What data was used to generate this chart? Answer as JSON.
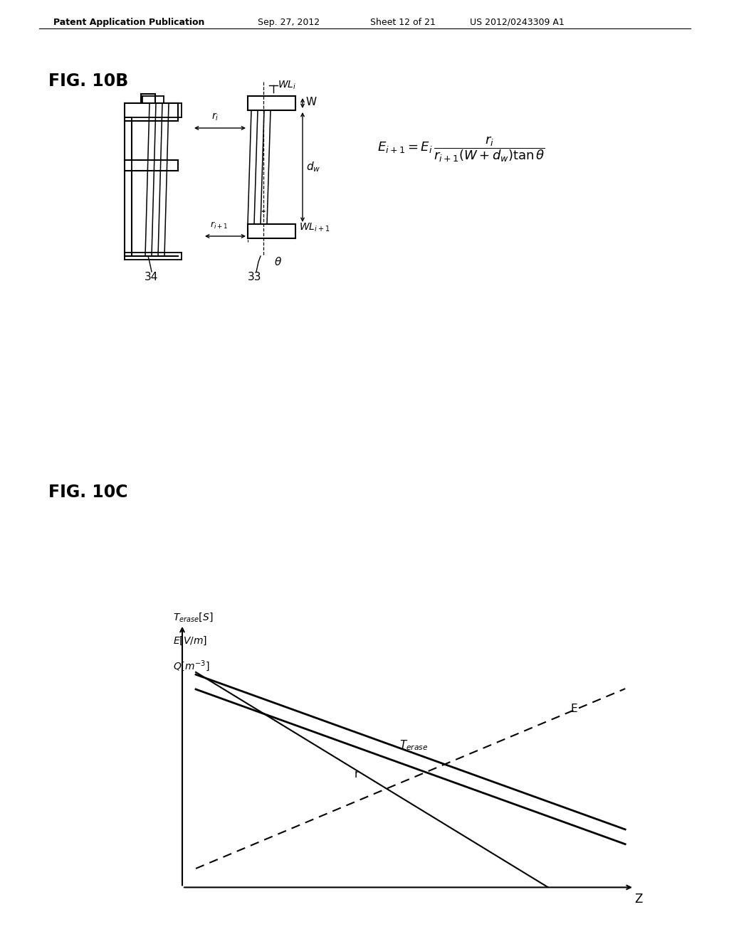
{
  "background_color": "#ffffff",
  "header_text": "Patent Application Publication",
  "header_date": "Sep. 27, 2012",
  "header_sheet": "Sheet 12 of 21",
  "header_patent": "US 2012/0243309 A1",
  "fig10b_label": "FIG. 10B",
  "fig10c_label": "FIG. 10C"
}
